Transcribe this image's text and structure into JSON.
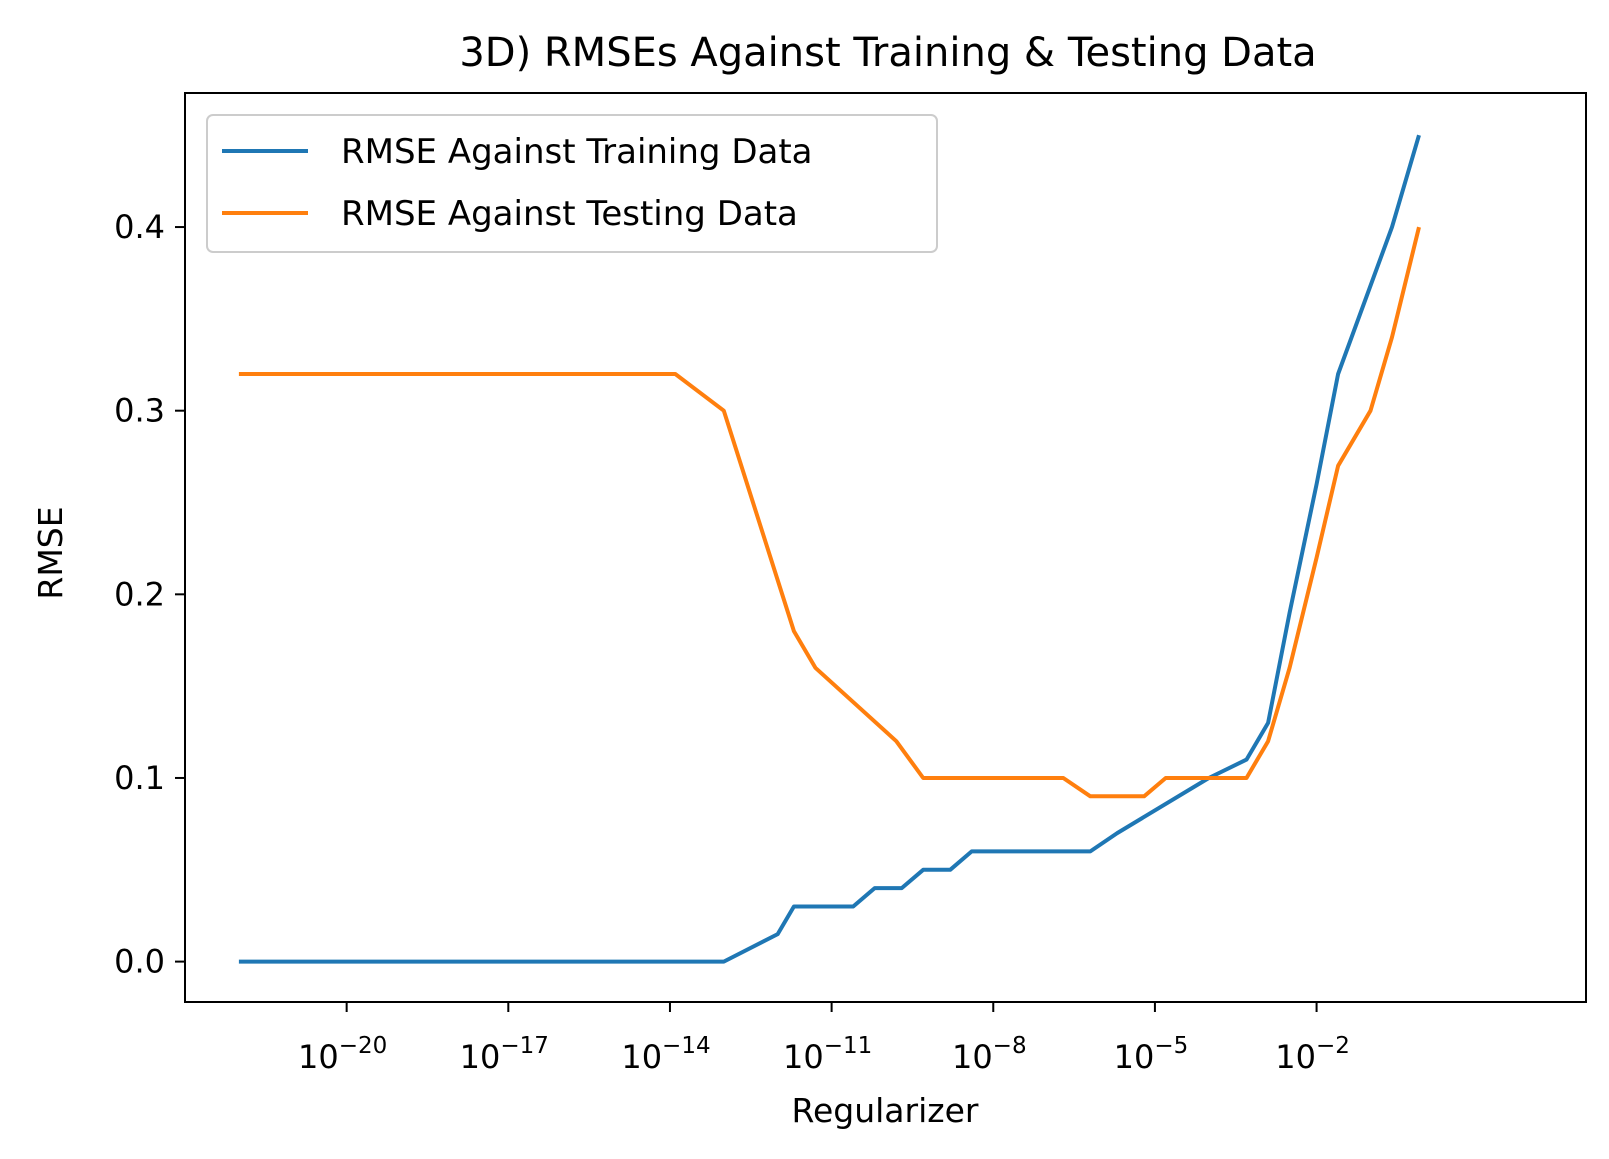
{
  "chart_data": {
    "type": "line",
    "title": "3D) RMSEs Against Training & Testing Data",
    "xlabel": "Regularizer",
    "ylabel": "RMSE",
    "xscale": "log",
    "xlim": [
      1e-23,
      1000.0
    ],
    "ylim": [
      -0.022,
      0.473
    ],
    "x_ticks": [
      {
        "base": "10",
        "exp": "−20",
        "value": -20
      },
      {
        "base": "10",
        "exp": "−17",
        "value": -17
      },
      {
        "base": "10",
        "exp": "−14",
        "value": -14
      },
      {
        "base": "10",
        "exp": "−11",
        "value": -11
      },
      {
        "base": "10",
        "exp": "−8",
        "value": -8
      },
      {
        "base": "10",
        "exp": "−5",
        "value": -5
      },
      {
        "base": "10",
        "exp": "−2",
        "value": -2
      }
    ],
    "y_ticks": [
      {
        "label": "0.0",
        "value": 0.0
      },
      {
        "label": "0.1",
        "value": 0.1
      },
      {
        "label": "0.2",
        "value": 0.2
      },
      {
        "label": "0.3",
        "value": 0.3
      },
      {
        "label": "0.4",
        "value": 0.4
      }
    ],
    "grid": false,
    "legend_position": "top-left",
    "series": [
      {
        "name": "RMSE Against Training Data",
        "color": "#1f77b4",
        "points": [
          [
            "1e-22",
            0.0
          ],
          [
            "1e-13",
            0.0
          ],
          [
            "1e-12",
            0.015
          ],
          [
            "1e-11.7",
            0.03
          ],
          [
            "1e-10.6",
            0.03
          ],
          [
            "1e-10.2",
            0.04
          ],
          [
            "1e-9.7",
            0.04
          ],
          [
            "1e-9.3",
            0.05
          ],
          [
            "1e-8.8",
            0.05
          ],
          [
            "1e-8.4",
            0.06
          ],
          [
            "1e-6.2",
            0.06
          ],
          [
            "1e-5.7",
            0.07
          ],
          [
            "1e-4",
            0.1
          ],
          [
            "1e-3.3",
            0.11
          ],
          [
            "1e-2.9",
            0.13
          ],
          [
            "1e-2.5",
            0.19
          ],
          [
            "1e-2",
            0.26
          ],
          [
            "1e-1.6",
            0.32
          ],
          [
            "1e-0.6",
            0.4
          ],
          [
            "1e-0.1",
            0.45
          ]
        ]
      },
      {
        "name": "RMSE Against Testing Data",
        "color": "#ff7f0e",
        "points": [
          [
            "1e-22",
            0.32
          ],
          [
            "1e-13.9",
            0.32
          ],
          [
            "1e-13",
            0.3
          ],
          [
            "1e-11.7",
            0.18
          ],
          [
            "1e-11.3",
            0.16
          ],
          [
            "1e-9.8",
            0.12
          ],
          [
            "1e-9.3",
            0.1
          ],
          [
            "1e-6.7",
            0.1
          ],
          [
            "1e-6.2",
            0.09
          ],
          [
            "1e-5.2",
            0.09
          ],
          [
            "1e-4.8",
            0.1
          ],
          [
            "1e-3.3",
            0.1
          ],
          [
            "1e-2.9",
            0.12
          ],
          [
            "1e-2.5",
            0.16
          ],
          [
            "1e-2",
            0.22
          ],
          [
            "1e-1.6",
            0.27
          ],
          [
            "1e-1",
            0.3
          ],
          [
            "1e-0.6",
            0.34
          ],
          [
            "1e-0.1",
            0.4
          ]
        ]
      }
    ]
  }
}
